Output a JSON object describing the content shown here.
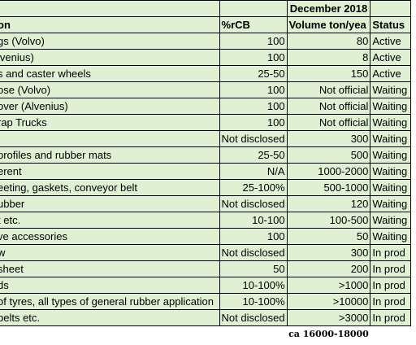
{
  "header": {
    "month_label": "December 2018",
    "col_application": "on",
    "col_rcb": "%rCB",
    "col_volume": "Volume ton/yea",
    "col_status": "Status"
  },
  "rows": [
    {
      "application": "gs (Volvo)",
      "rcb": "100",
      "volume": "80",
      "status": "Active"
    },
    {
      "application": "lvenius)",
      "rcb": "100",
      "volume": "8",
      "status": "Active"
    },
    {
      "application": "s and caster wheels",
      "rcb": "25-50",
      "volume": "150",
      "status": "Active"
    },
    {
      "application": "ose (Volvo)",
      "rcb": "100",
      "volume": "Not official",
      "status": "Waiting"
    },
    {
      "application": "over (Alvenius)",
      "rcb": "100",
      "volume": "Not official",
      "status": "Waiting"
    },
    {
      "application": "rap Trucks",
      "rcb": "100",
      "volume": "Not official",
      "status": "Waiting"
    },
    {
      "application": "",
      "rcb": "Not disclosed",
      "volume": "300",
      "status": "Waiting"
    },
    {
      "application": "profiles and rubber mats",
      "rcb": "25-50",
      "volume": "500",
      "status": "Waiting"
    },
    {
      "application": "erent",
      "rcb": "N/A",
      "volume": "1000-2000",
      "status": "Waiting"
    },
    {
      "application": "eeting, gaskets, conveyor belt",
      "rcb": "25-100%",
      "volume": "500-1000",
      "status": "Waiting"
    },
    {
      "application": "ubber",
      "rcb": "Not disclosed",
      "volume": "120",
      "status": "Waiting"
    },
    {
      "application": "t etc.",
      "rcb": "10-100",
      "volume": "100-500",
      "status": "Waiting"
    },
    {
      "application": "ve accessories",
      "rcb": "100",
      "volume": "50",
      "status": "Waiting"
    },
    {
      "application": "w",
      "rcb": "Not disclosed",
      "volume": "300",
      "status": "In prod"
    },
    {
      "application": "sheet",
      "rcb": "50",
      "volume": "200",
      "status": "In prod"
    },
    {
      "application": "ds",
      "rcb": "10-100%",
      "volume": ">1000",
      "status": "In prod"
    },
    {
      "application": "of tyres, all types of general rubber application",
      "rcb": "10-100%",
      "volume": ">10000",
      "status": "In prod"
    },
    {
      "application": "belts etc.",
      "rcb": "Not disclosed",
      "volume": ">3000",
      "status": "In prod"
    }
  ],
  "total": {
    "volume": "ca 16000-18000"
  }
}
